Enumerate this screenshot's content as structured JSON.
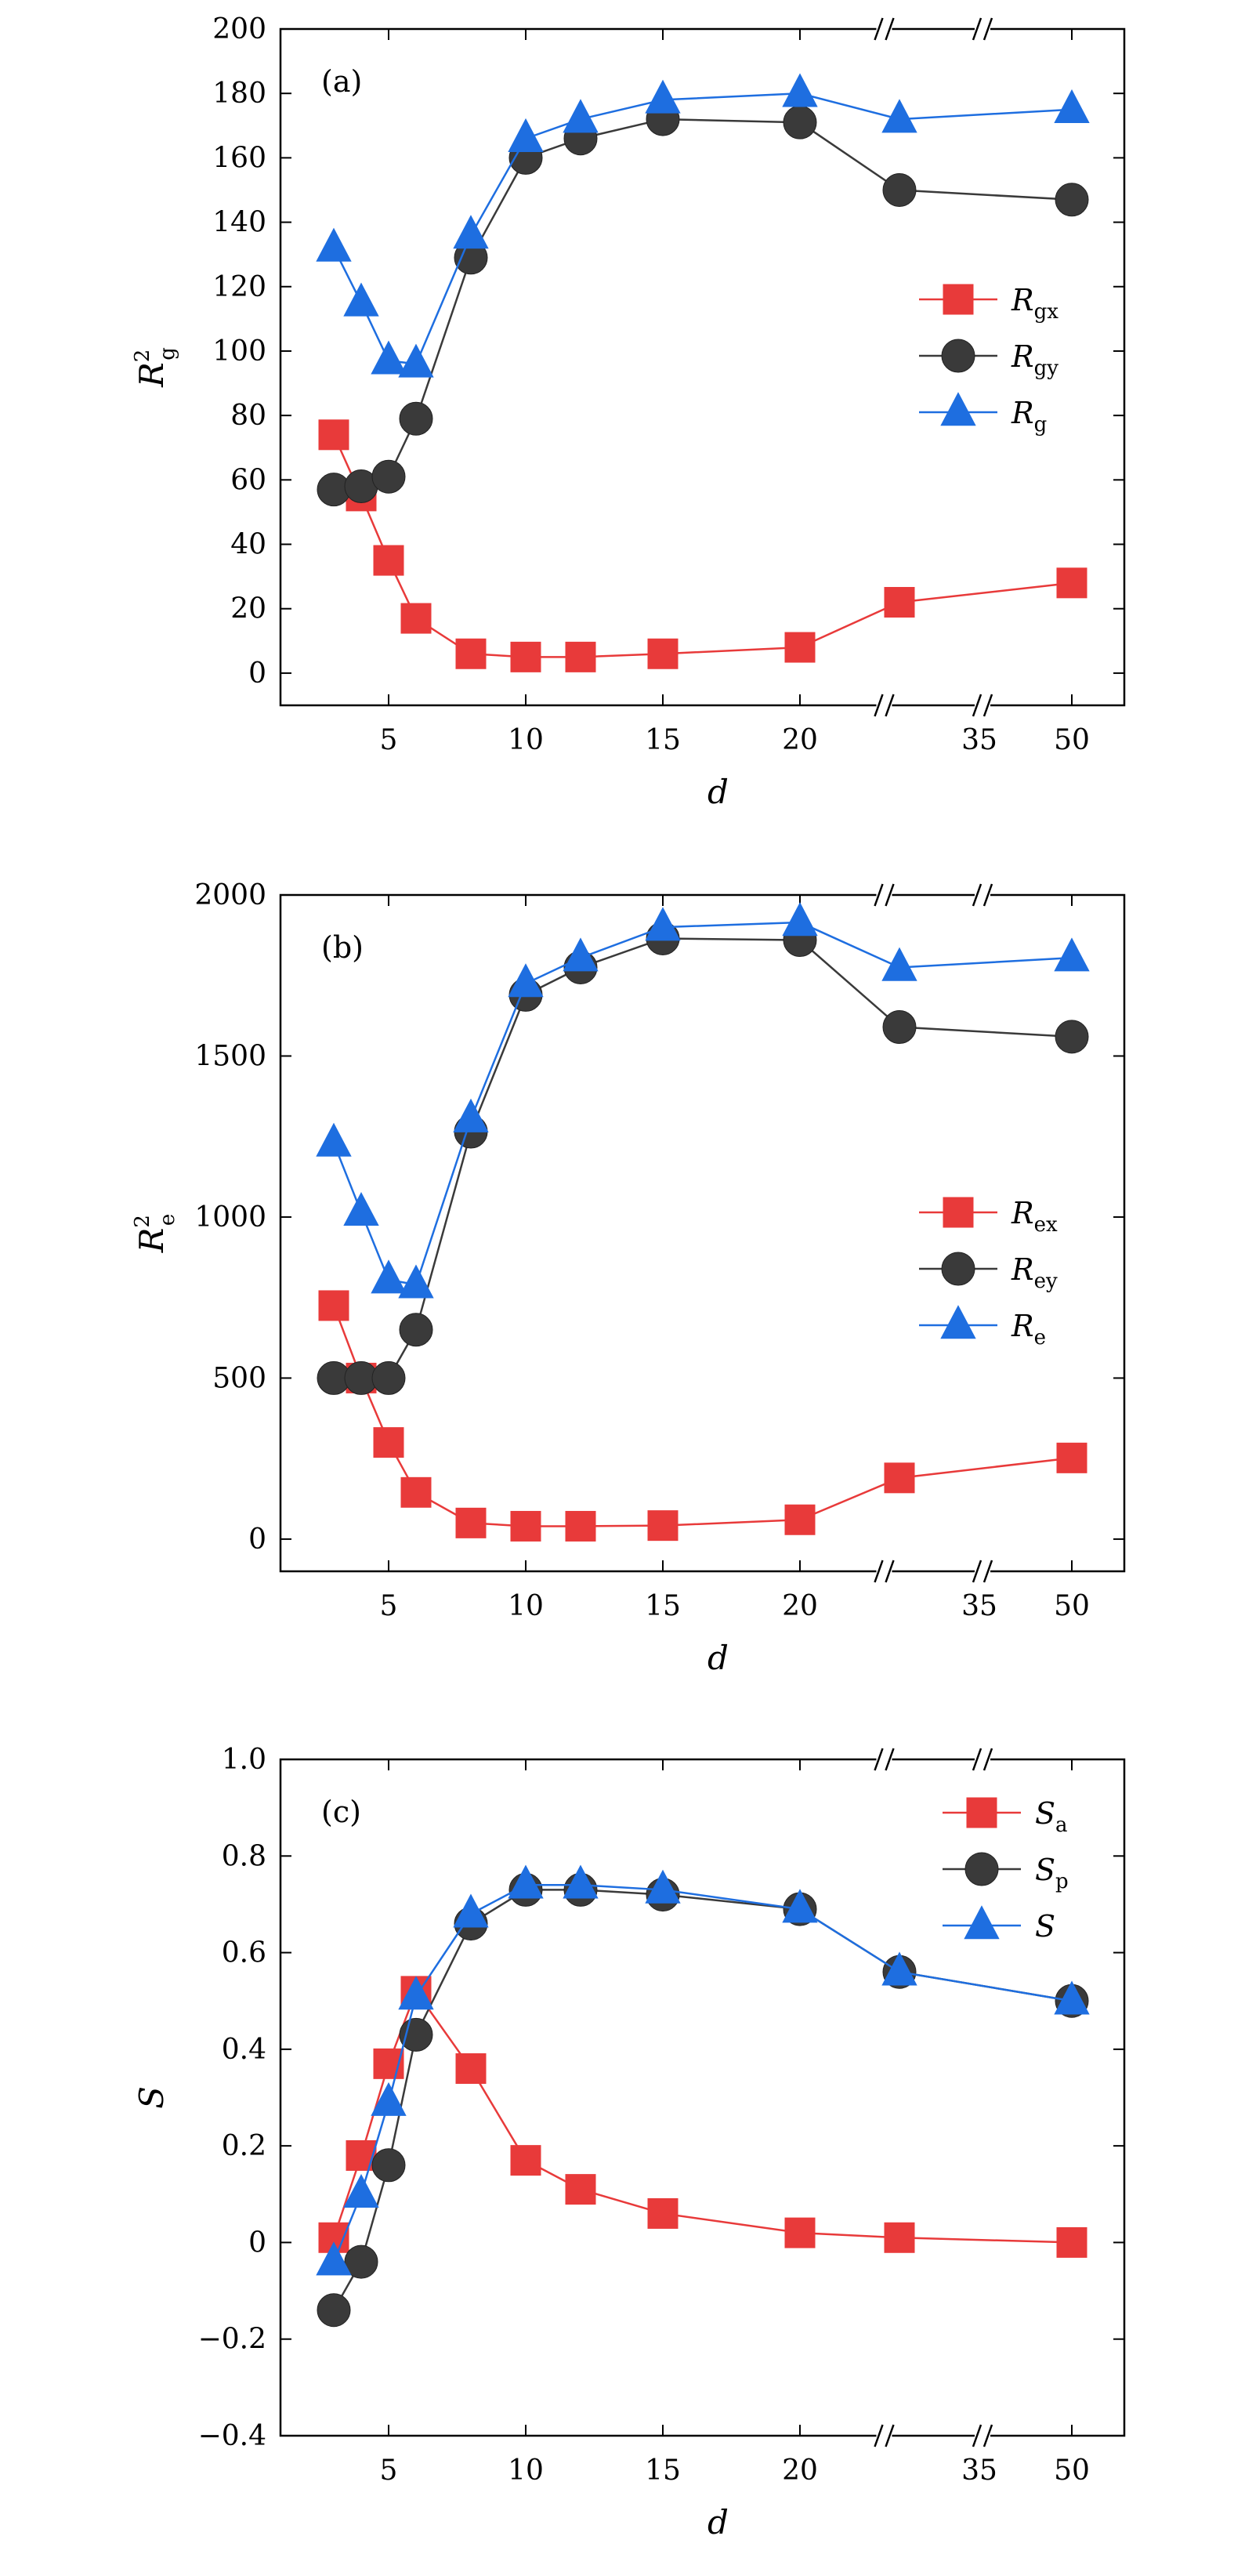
{
  "chart_data": [
    {
      "type": "line",
      "panel_label": "(a)",
      "xlabel": "d",
      "ylabel": {
        "base": "R",
        "sub": "g",
        "sup": "2"
      },
      "x": [
        3,
        4,
        5,
        6,
        8,
        10,
        12,
        15,
        20,
        25,
        50
      ],
      "x_break_after": 20,
      "x_ticks": [
        5,
        10,
        15,
        20,
        35,
        50
      ],
      "ylim": [
        -10,
        200
      ],
      "y_ticks": [
        0,
        20,
        40,
        60,
        80,
        100,
        120,
        140,
        160,
        180,
        200
      ],
      "legend_position": "right-middle",
      "series": [
        {
          "name": "R",
          "name_sub": "gx",
          "color": "#e83a3a",
          "marker": "square",
          "values": [
            74,
            55,
            35,
            17,
            6,
            5,
            5,
            6,
            8,
            22,
            28
          ]
        },
        {
          "name": "R",
          "name_sub": "gy",
          "color": "#3a3a3a",
          "marker": "circle",
          "values": [
            57,
            58,
            61,
            79,
            129,
            160,
            166,
            172,
            171,
            150,
            147
          ]
        },
        {
          "name": "R",
          "name_sub": "g",
          "color": "#1e6ee0",
          "marker": "triangle",
          "values": [
            132,
            115,
            97,
            96,
            136,
            166,
            172,
            178,
            180,
            172,
            175
          ]
        }
      ]
    },
    {
      "type": "line",
      "panel_label": "(b)",
      "xlabel": "d",
      "ylabel": {
        "base": "R",
        "sub": "e",
        "sup": "2"
      },
      "x": [
        3,
        4,
        5,
        6,
        8,
        10,
        12,
        15,
        20,
        25,
        50
      ],
      "x_break_after": 20,
      "x_ticks": [
        5,
        10,
        15,
        20,
        35,
        50
      ],
      "ylim": [
        -100,
        2000
      ],
      "y_ticks": [
        0,
        500,
        1000,
        1500,
        2000
      ],
      "legend_position": "right-middle",
      "series": [
        {
          "name": "R",
          "name_sub": "ex",
          "color": "#e83a3a",
          "marker": "square",
          "values": [
            725,
            500,
            300,
            145,
            50,
            40,
            40,
            42,
            60,
            190,
            252
          ]
        },
        {
          "name": "R",
          "name_sub": "ey",
          "color": "#3a3a3a",
          "marker": "circle",
          "values": [
            500,
            500,
            500,
            650,
            1265,
            1690,
            1775,
            1865,
            1860,
            1590,
            1560
          ]
        },
        {
          "name": "R",
          "name_sub": "e",
          "color": "#1e6ee0",
          "marker": "triangle",
          "values": [
            1230,
            1015,
            805,
            790,
            1305,
            1725,
            1805,
            1900,
            1915,
            1775,
            1805
          ]
        }
      ]
    },
    {
      "type": "line",
      "panel_label": "(c)",
      "xlabel": "d",
      "ylabel": {
        "base": "S",
        "sub": "",
        "sup": ""
      },
      "x": [
        3,
        4,
        5,
        6,
        8,
        10,
        12,
        15,
        20,
        25,
        50
      ],
      "x_break_after": 20,
      "x_ticks": [
        5,
        10,
        15,
        20,
        35,
        50
      ],
      "ylim": [
        -0.4,
        1.0
      ],
      "y_ticks": [
        -0.4,
        -0.2,
        0,
        0.2,
        0.4,
        0.6,
        0.8,
        1.0
      ],
      "y_tick_labels": [
        "−0.4",
        "−0.2",
        "0",
        "0.2",
        "0.4",
        "0.6",
        "0.8",
        "1.0"
      ],
      "legend_position": "top-right",
      "series": [
        {
          "name": "S",
          "name_sub": "a",
          "color": "#e83a3a",
          "marker": "square",
          "values": [
            0.01,
            0.18,
            0.37,
            0.52,
            0.36,
            0.17,
            0.11,
            0.06,
            0.02,
            0.01,
            0.0
          ]
        },
        {
          "name": "S",
          "name_sub": "p",
          "color": "#3a3a3a",
          "marker": "circle",
          "values": [
            -0.14,
            -0.04,
            0.16,
            0.43,
            0.66,
            0.73,
            0.73,
            0.72,
            0.69,
            0.56,
            0.5
          ]
        },
        {
          "name": "S",
          "name_sub": "",
          "color": "#1e6ee0",
          "marker": "triangle",
          "values": [
            -0.04,
            0.1,
            0.29,
            0.51,
            0.68,
            0.74,
            0.74,
            0.73,
            0.69,
            0.56,
            0.5
          ]
        }
      ]
    }
  ]
}
